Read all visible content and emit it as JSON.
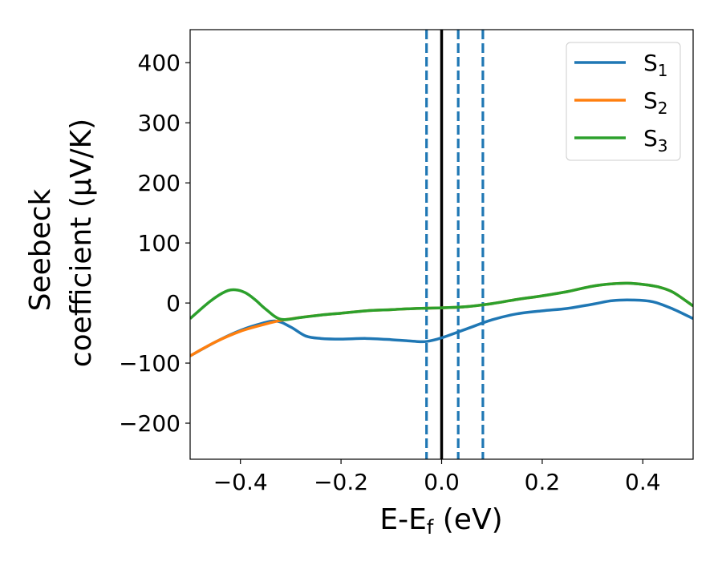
{
  "chart_data": {
    "type": "line",
    "xlabel": {
      "main": "E-E",
      "sub": "f",
      "tail": " (eV)"
    },
    "ylabel": {
      "line1": "Seebeck",
      "line2": "coefficient  (μV/K)"
    },
    "xlim": [
      -0.5,
      0.5
    ],
    "ylim": [
      -260,
      455
    ],
    "xticks": [
      -0.4,
      -0.2,
      0.0,
      0.2,
      0.4
    ],
    "xtick_labels": [
      "−0.4",
      "−0.2",
      "0.0",
      "0.2",
      "0.4"
    ],
    "yticks": [
      -200,
      -100,
      0,
      100,
      200,
      300,
      400
    ],
    "ytick_labels": [
      "−200",
      "−100",
      "0",
      "100",
      "200",
      "300",
      "400"
    ],
    "legend_position": "top-right",
    "vlines": [
      {
        "x": -0.03,
        "style": "dashed",
        "color": "#1f77b4"
      },
      {
        "x": 0.0,
        "style": "solid",
        "color": "#000000"
      },
      {
        "x": 0.033,
        "style": "dashed",
        "color": "#1f77b4"
      },
      {
        "x": 0.082,
        "style": "dashed",
        "color": "#1f77b4"
      }
    ],
    "series": [
      {
        "name": "S",
        "sub": "1",
        "color": "#1f77b4",
        "x": [
          -0.5,
          -0.45,
          -0.41,
          -0.37,
          -0.33,
          -0.3,
          -0.27,
          -0.24,
          -0.2,
          -0.15,
          -0.1,
          -0.05,
          -0.03,
          0.0,
          0.05,
          0.1,
          0.15,
          0.2,
          0.25,
          0.3,
          0.34,
          0.38,
          0.42,
          0.46,
          0.5
        ],
        "y": [
          -88,
          -65,
          -49,
          -37,
          -30,
          -40,
          -55,
          -59,
          -60,
          -59,
          -61,
          -64,
          -64,
          -58,
          -43,
          -28,
          -18,
          -13,
          -9,
          -2,
          4,
          5,
          2,
          -10,
          -26
        ]
      },
      {
        "name": "S",
        "sub": "2",
        "color": "#ff7f0e",
        "x": [
          -0.5,
          -0.45,
          -0.4,
          -0.35,
          -0.32,
          -0.28,
          -0.24,
          -0.2,
          -0.15,
          -0.1,
          -0.05,
          0.0,
          0.05,
          0.1,
          0.15,
          0.2,
          0.25,
          0.3,
          0.34,
          0.37,
          0.4,
          0.43,
          0.46,
          0.5
        ],
        "y": [
          -88,
          -65,
          -47,
          -35,
          -29,
          -24,
          -20,
          -17,
          -13,
          -11,
          -9,
          -8,
          -6,
          -1,
          6,
          12,
          19,
          28,
          32,
          33,
          31,
          27,
          18,
          -5
        ]
      },
      {
        "name": "S",
        "sub": "3",
        "color": "#2ca02c",
        "x": [
          -0.5,
          -0.46,
          -0.43,
          -0.41,
          -0.39,
          -0.37,
          -0.35,
          -0.32,
          -0.28,
          -0.24,
          -0.2,
          -0.15,
          -0.1,
          -0.05,
          0.0,
          0.05,
          0.1,
          0.15,
          0.2,
          0.25,
          0.3,
          0.34,
          0.37,
          0.4,
          0.43,
          0.46,
          0.5
        ],
        "y": [
          -26,
          3,
          19,
          22,
          17,
          5,
          -10,
          -27,
          -24,
          -20,
          -17,
          -13,
          -11,
          -9,
          -8,
          -6,
          -1,
          6,
          12,
          19,
          28,
          32,
          33,
          31,
          27,
          18,
          -5
        ]
      }
    ]
  }
}
